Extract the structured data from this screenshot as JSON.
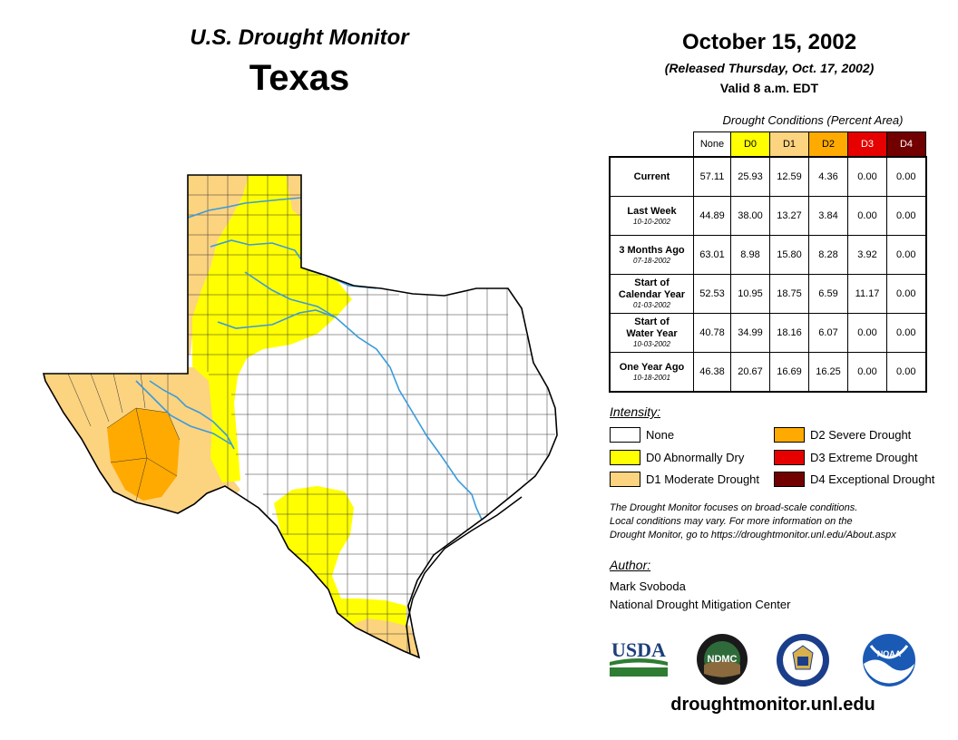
{
  "header": {
    "title": "U.S. Drought Monitor",
    "state": "Texas",
    "date": "October 15, 2002",
    "released": "(Released Thursday, Oct. 17, 2002)",
    "valid": "Valid 8 a.m. EDT"
  },
  "table": {
    "caption": "Drought Conditions (Percent Area)",
    "columns": [
      "None",
      "D0",
      "D1",
      "D2",
      "D3",
      "D4"
    ],
    "rows": [
      {
        "label": "Current",
        "label2": "",
        "date": "",
        "values": [
          "57.11",
          "25.93",
          "12.59",
          "4.36",
          "0.00",
          "0.00"
        ]
      },
      {
        "label": "Last Week",
        "label2": "",
        "date": "10-10-2002",
        "values": [
          "44.89",
          "38.00",
          "13.27",
          "3.84",
          "0.00",
          "0.00"
        ]
      },
      {
        "label": "3 Months Ago",
        "label2": "",
        "date": "07-18-2002",
        "values": [
          "63.01",
          "8.98",
          "15.80",
          "8.28",
          "3.92",
          "0.00"
        ]
      },
      {
        "label": "Start of",
        "label2": "Calendar Year",
        "date": "01-03-2002",
        "values": [
          "52.53",
          "10.95",
          "18.75",
          "6.59",
          "11.17",
          "0.00"
        ]
      },
      {
        "label": "Start of",
        "label2": "Water Year",
        "date": "10-03-2002",
        "values": [
          "40.78",
          "34.99",
          "18.16",
          "6.07",
          "0.00",
          "0.00"
        ]
      },
      {
        "label": "One Year Ago",
        "label2": "",
        "date": "10-18-2001",
        "values": [
          "46.38",
          "20.67",
          "16.69",
          "16.25",
          "0.00",
          "0.00"
        ]
      }
    ]
  },
  "legend": {
    "heading": "Intensity:",
    "items": [
      {
        "label": "None",
        "color": "#ffffff"
      },
      {
        "label": "D0 Abnormally Dry",
        "color": "#ffff00"
      },
      {
        "label": "D1 Moderate Drought",
        "color": "#fcd37f"
      },
      {
        "label": "D2 Severe Drought",
        "color": "#ffaa00"
      },
      {
        "label": "D3 Extreme Drought",
        "color": "#e60000"
      },
      {
        "label": "D4 Exceptional Drought",
        "color": "#730000"
      }
    ]
  },
  "note": {
    "line1": "The Drought Monitor focuses on broad-scale conditions.",
    "line2": "Local conditions may vary. For more information on the",
    "line3": "Drought Monitor, go to https://droughtmonitor.unl.edu/About.aspx"
  },
  "author": {
    "heading": "Author:",
    "name": "Mark Svoboda",
    "org": "National Drought Mitigation Center"
  },
  "logos": {
    "usda": "USDA",
    "ndmc": "NDMC",
    "noaa": "NOAA"
  },
  "footer": {
    "url": "droughtmonitor.unl.edu"
  },
  "colors": {
    "none": "#ffffff",
    "d0": "#ffff00",
    "d1": "#fcd37f",
    "d2": "#ffaa00",
    "river": "#3a9bdc"
  }
}
